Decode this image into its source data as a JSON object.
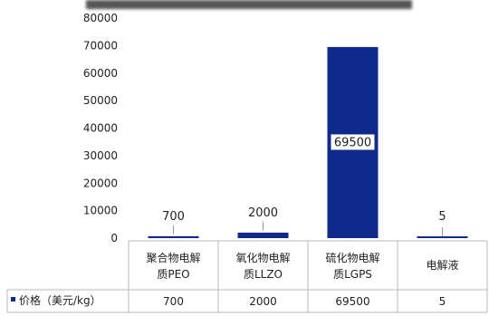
{
  "chart_data": {
    "type": "bar",
    "title": "",
    "categories": [
      [
        "聚合物电解",
        "质PEO"
      ],
      [
        "氧化物电解",
        "质LLZO"
      ],
      [
        "硫化物电解",
        "质LGPS"
      ],
      [
        "电解液"
      ]
    ],
    "series": [
      {
        "name": "价格（美元/kg）",
        "values": [
          700,
          2000,
          69500,
          5
        ],
        "color": "#0f2a8c"
      }
    ],
    "data_labels": [
      "700",
      "2000",
      "69500",
      "5"
    ],
    "table_values": [
      "700",
      "2000",
      "69500",
      "5"
    ],
    "yticks": [
      "0",
      "10000",
      "20000",
      "30000",
      "40000",
      "50000",
      "60000",
      "70000",
      "80000"
    ],
    "ylim": [
      0,
      80000
    ],
    "grid": false,
    "legend": "data-table"
  }
}
